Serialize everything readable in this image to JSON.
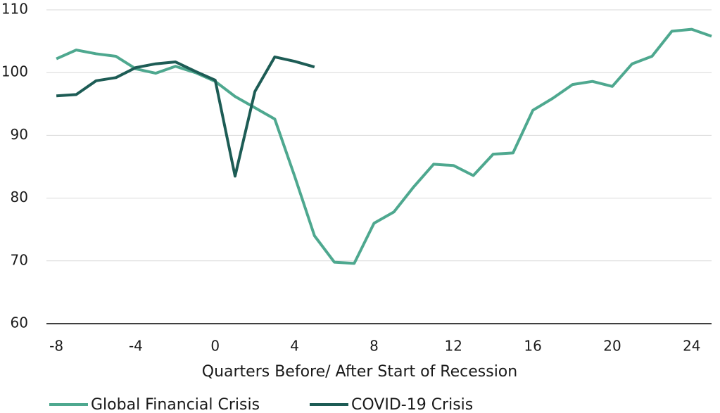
{
  "chart_data": {
    "type": "line",
    "x_label": "Quarters Before/ After Start of Recession",
    "x": [
      -8,
      -7,
      -6,
      -5,
      -4,
      -3,
      -2,
      -1,
      0,
      1,
      2,
      3,
      4,
      5,
      6,
      7,
      8,
      9,
      10,
      11,
      12,
      13,
      14,
      15,
      16,
      17,
      18,
      19,
      20,
      21,
      22,
      23,
      24,
      25
    ],
    "series": [
      {
        "name": "Global Financial Crisis",
        "color": "#4ea88f",
        "values": [
          102.2,
          103.6,
          103.0,
          102.6,
          100.6,
          99.9,
          101.0,
          100.0,
          98.6,
          96.2,
          94.4,
          92.6,
          83.5,
          74.0,
          69.8,
          69.6,
          76.0,
          77.8,
          81.8,
          85.4,
          85.2,
          83.6,
          87.0,
          87.2,
          94.0,
          95.9,
          98.1,
          98.6,
          97.8,
          101.4,
          102.6,
          106.6,
          106.9,
          105.8
        ]
      },
      {
        "name": "COVID-19 Crisis",
        "color": "#1d5c55",
        "values": [
          96.3,
          96.5,
          98.7,
          99.2,
          100.8,
          101.4,
          101.7,
          100.2,
          98.8,
          83.5,
          97.0,
          102.5,
          101.8,
          100.9,
          null,
          null,
          null,
          null,
          null,
          null,
          null,
          null,
          null,
          null,
          null,
          null,
          null,
          null,
          null,
          null,
          null,
          null,
          null,
          null
        ]
      }
    ],
    "xlim": [
      -8.5,
      25
    ],
    "xticks": [
      -8,
      -4,
      0,
      4,
      8,
      12,
      16,
      20,
      24
    ],
    "ylim": [
      60,
      110
    ],
    "yticks": [
      60,
      70,
      80,
      90,
      100,
      110
    ],
    "grid": true,
    "legend": "bottom-left"
  }
}
